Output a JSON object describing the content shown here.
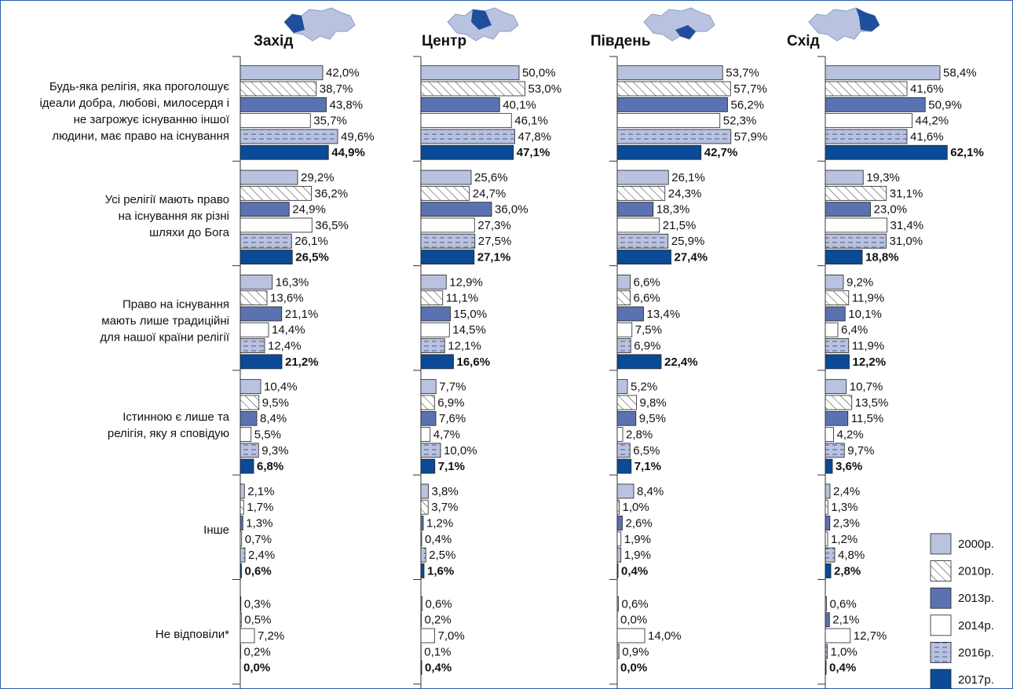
{
  "chart_data": {
    "type": "bar",
    "orientation": "horizontal",
    "categories": [
      "Будь-яка релігія, яка проголошує\nідеали добра, любові, милосердя і\nне загрожує існуванню іншої\nлюдини, має право на існування",
      "Усі релігії мають право\nна існування як різні\nшляхи до Бога",
      "Право на існування\nмають лише традиційні\nдля нашої країни релігії",
      "Істинною є лише та\nрелігія, яку я сповідую",
      "Інше",
      "Не відповіли*"
    ],
    "series": [
      {
        "name": "2000р.",
        "color": "#b9c2df"
      },
      {
        "name": "2010р.",
        "color": "#ffffff",
        "pattern": "hatch"
      },
      {
        "name": "2013р.",
        "color": "#5b72b0"
      },
      {
        "name": "2014р.",
        "color": "#ffffff"
      },
      {
        "name": "2016р.",
        "color": "#b9c2df",
        "pattern": "dashes"
      },
      {
        "name": "2017р.",
        "color": "#0a4a96",
        "bold_labels": true
      }
    ],
    "panels": [
      {
        "title": "Захід",
        "series": [
          {
            "values": [
              42.0,
              29.2,
              16.3,
              10.4,
              2.1,
              0.3
            ],
            "value_labels": [
              "42,0%",
              "29,2%",
              "16,3%",
              "10,4%",
              "2,1%",
              "0,3%"
            ]
          },
          {
            "values": [
              38.7,
              36.2,
              13.6,
              9.5,
              1.7,
              0.5
            ],
            "value_labels": [
              "38,7%",
              "36,2%",
              "13,6%",
              "9,5%",
              "1,7%",
              "0,5%"
            ]
          },
          {
            "values": [
              43.8,
              24.9,
              21.1,
              8.4,
              1.3,
              null
            ],
            "value_labels": [
              "43,8%",
              "24,9%",
              "21,1%",
              "8,4%",
              "1,3%",
              null
            ]
          },
          {
            "values": [
              35.7,
              36.5,
              14.4,
              5.5,
              0.7,
              7.2
            ],
            "value_labels": [
              "35,7%",
              "36,5%",
              "14,4%",
              "5,5%",
              "0,7%",
              "7,2%"
            ]
          },
          {
            "values": [
              49.6,
              26.1,
              12.4,
              9.3,
              2.4,
              0.2
            ],
            "value_labels": [
              "49,6%",
              "26,1%",
              "12,4%",
              "9,3%",
              "2,4%",
              "0,2%"
            ]
          },
          {
            "values": [
              44.9,
              26.5,
              21.2,
              6.8,
              0.6,
              0.0
            ],
            "value_labels": [
              "44,9%",
              "26,5%",
              "21,2%",
              "6,8%",
              "0,6%",
              "0,0%"
            ]
          }
        ]
      },
      {
        "title": "Центр",
        "series": [
          {
            "values": [
              50.0,
              25.6,
              12.9,
              7.7,
              3.8,
              0.6
            ],
            "value_labels": [
              "50,0%",
              "25,6%",
              "12,9%",
              "7,7%",
              "3,8%",
              "0,6%"
            ]
          },
          {
            "values": [
              53.0,
              24.7,
              11.1,
              6.9,
              3.7,
              0.2
            ],
            "value_labels": [
              "53,0%",
              "24,7%",
              "11,1%",
              "6,9%",
              "3,7%",
              "0,2%"
            ]
          },
          {
            "values": [
              40.1,
              36.0,
              15.0,
              7.6,
              1.2,
              null
            ],
            "value_labels": [
              "40,1%",
              "36,0%",
              "15,0%",
              "7,6%",
              "1,2%",
              null
            ]
          },
          {
            "values": [
              46.1,
              27.3,
              14.5,
              4.7,
              0.4,
              7.0
            ],
            "value_labels": [
              "46,1%",
              "27,3%",
              "14,5%",
              "4,7%",
              "0,4%",
              "7,0%"
            ]
          },
          {
            "values": [
              47.8,
              27.5,
              12.1,
              10.0,
              2.5,
              0.1
            ],
            "value_labels": [
              "47,8%",
              "27,5%",
              "12,1%",
              "10,0%",
              "2,5%",
              "0,1%"
            ]
          },
          {
            "values": [
              47.1,
              27.1,
              16.6,
              7.1,
              1.6,
              0.4
            ],
            "value_labels": [
              "47,1%",
              "27,1%",
              "16,6%",
              "7,1%",
              "1,6%",
              "0,4%"
            ]
          }
        ]
      },
      {
        "title": "Південь",
        "series": [
          {
            "values": [
              53.7,
              26.1,
              6.6,
              5.2,
              8.4,
              0.6
            ],
            "value_labels": [
              "53,7%",
              "26,1%",
              "6,6%",
              "5,2%",
              "8,4%",
              "0,6%"
            ]
          },
          {
            "values": [
              57.7,
              24.3,
              6.6,
              9.8,
              1.0,
              0.0
            ],
            "value_labels": [
              "57,7%",
              "24,3%",
              "6,6%",
              "9,8%",
              "1,0%",
              "0,0%"
            ]
          },
          {
            "values": [
              56.2,
              18.3,
              13.4,
              9.5,
              2.6,
              null
            ],
            "value_labels": [
              "56,2%",
              "18,3%",
              "13,4%",
              "9,5%",
              "2,6%",
              null
            ]
          },
          {
            "values": [
              52.3,
              21.5,
              7.5,
              2.8,
              1.9,
              14.0
            ],
            "value_labels": [
              "52,3%",
              "21,5%",
              "7,5%",
              "2,8%",
              "1,9%",
              "14,0%"
            ]
          },
          {
            "values": [
              57.9,
              25.9,
              6.9,
              6.5,
              1.9,
              0.9
            ],
            "value_labels": [
              "57,9%",
              "25,9%",
              "6,9%",
              "6,5%",
              "1,9%",
              "0,9%"
            ]
          },
          {
            "values": [
              42.7,
              27.4,
              22.4,
              7.1,
              0.4,
              0.0
            ],
            "value_labels": [
              "42,7%",
              "27,4%",
              "22,4%",
              "7,1%",
              "0,4%",
              "0,0%"
            ]
          }
        ]
      },
      {
        "title": "Схід",
        "series": [
          {
            "values": [
              58.4,
              19.3,
              9.2,
              10.7,
              2.4,
              0.6
            ],
            "value_labels": [
              "58,4%",
              "19,3%",
              "9,2%",
              "10,7%",
              "2,4%",
              "0,6%"
            ]
          },
          {
            "values": [
              41.6,
              31.1,
              11.9,
              13.5,
              1.3,
              null
            ],
            "value_labels": [
              "41,6%",
              "31,1%",
              "11,9%",
              "13,5%",
              "1,3%",
              null
            ]
          },
          {
            "values": [
              50.9,
              23.0,
              10.1,
              11.5,
              2.3,
              2.1
            ],
            "value_labels": [
              "50,9%",
              "23,0%",
              "10,1%",
              "11,5%",
              "2,3%",
              "2,1%"
            ]
          },
          {
            "values": [
              44.2,
              31.4,
              6.4,
              4.2,
              1.2,
              12.7
            ],
            "value_labels": [
              "44,2%",
              "31,4%",
              "6,4%",
              "4,2%",
              "1,2%",
              "12,7%"
            ]
          },
          {
            "values": [
              41.6,
              31.0,
              11.9,
              9.7,
              4.8,
              1.0
            ],
            "value_labels": [
              "41,6%",
              "31,0%",
              "11,9%",
              "9,7%",
              "4,8%",
              "1,0%"
            ]
          },
          {
            "values": [
              62.1,
              18.8,
              12.2,
              3.6,
              2.8,
              0.4
            ],
            "value_labels": [
              "62,1%",
              "18,8%",
              "12,2%",
              "3,6%",
              "2,8%",
              "0,4%"
            ]
          }
        ]
      }
    ]
  }
}
